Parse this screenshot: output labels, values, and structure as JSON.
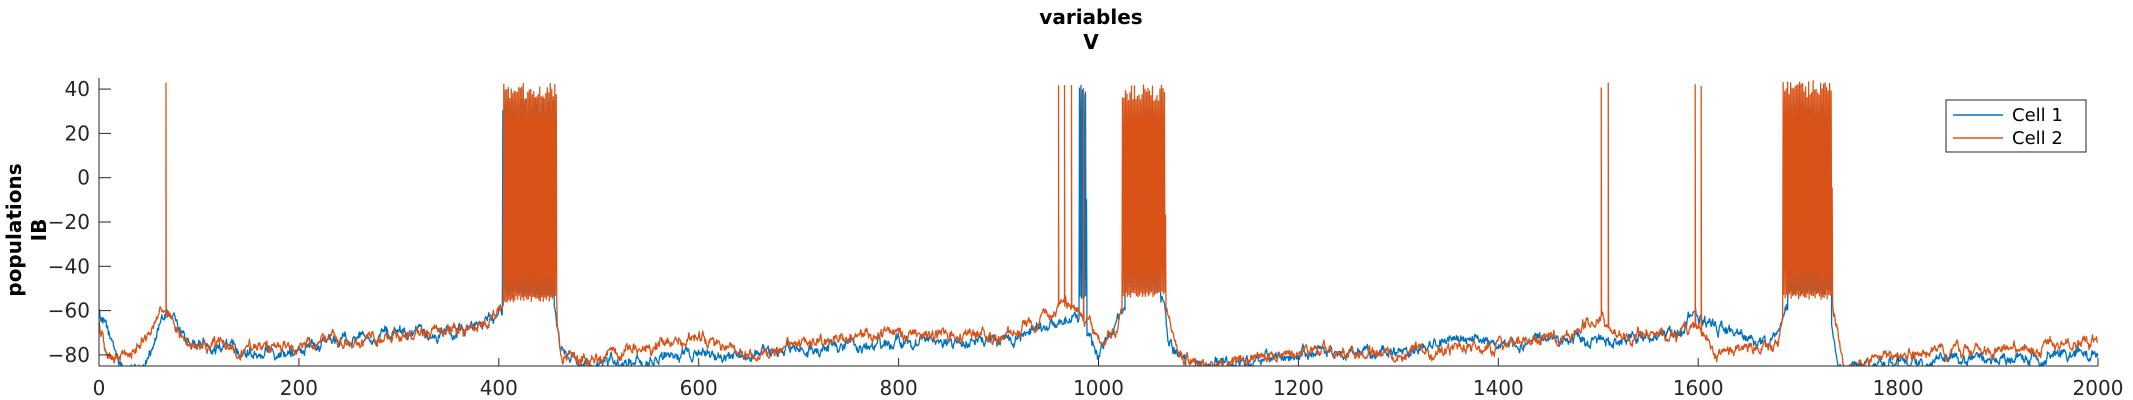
{
  "chart_data": {
    "type": "line",
    "title": [
      "variables",
      "V"
    ],
    "ylabel": [
      "populations",
      "IB"
    ],
    "xlabel": "",
    "xlim": [
      0,
      2000
    ],
    "ylim": [
      -85,
      45
    ],
    "xticks": [
      0,
      200,
      400,
      600,
      800,
      1000,
      1200,
      1400,
      1600,
      1800,
      2000
    ],
    "yticks": [
      40,
      20,
      0,
      -20,
      -40,
      -60,
      -80
    ],
    "grid": false,
    "legend_position": "top-right",
    "series": [
      {
        "name": "Cell 1",
        "color": "#0072BD",
        "baseline": [
          [
            0,
            -60
          ],
          [
            25,
            -88
          ],
          [
            45,
            -85
          ],
          [
            60,
            -68
          ],
          [
            68,
            -61
          ],
          [
            75,
            -64
          ],
          [
            90,
            -75
          ],
          [
            150,
            -78
          ],
          [
            200,
            -78
          ],
          [
            280,
            -70
          ],
          [
            330,
            -72
          ],
          [
            360,
            -68
          ],
          [
            390,
            -65
          ],
          [
            402,
            -61
          ],
          [
            415,
            -58
          ],
          [
            440,
            -55
          ],
          [
            455,
            -55
          ],
          [
            462,
            -78
          ],
          [
            480,
            -85
          ],
          [
            530,
            -83
          ],
          [
            600,
            -80
          ],
          [
            700,
            -78
          ],
          [
            800,
            -75
          ],
          [
            900,
            -73
          ],
          [
            950,
            -68
          ],
          [
            975,
            -62
          ],
          [
            990,
            -70
          ],
          [
            1000,
            -80
          ],
          [
            1015,
            -70
          ],
          [
            1025,
            -58
          ],
          [
            1065,
            -55
          ],
          [
            1070,
            -75
          ],
          [
            1090,
            -85
          ],
          [
            1200,
            -80
          ],
          [
            1300,
            -78
          ],
          [
            1370,
            -72
          ],
          [
            1400,
            -76
          ],
          [
            1450,
            -74
          ],
          [
            1500,
            -73
          ],
          [
            1580,
            -72
          ],
          [
            1595,
            -60
          ],
          [
            1610,
            -65
          ],
          [
            1660,
            -75
          ],
          [
            1680,
            -70
          ],
          [
            1688,
            -58
          ],
          [
            1730,
            -54
          ],
          [
            1740,
            -85
          ],
          [
            1800,
            -82
          ],
          [
            1900,
            -82
          ],
          [
            2000,
            -79
          ]
        ],
        "bursts": [
          {
            "range": [
              404,
              455
            ],
            "peak": 36,
            "trough": -54
          },
          {
            "range": [
              981,
              988
            ],
            "peak": 42,
            "trough": -55
          },
          {
            "range": [
              1027,
              1062
            ],
            "peak": 32,
            "trough": -52
          },
          {
            "range": [
              1690,
              1733
            ],
            "peak": 34,
            "trough": -53
          }
        ],
        "spikes": []
      },
      {
        "name": "Cell 2",
        "color": "#D95319",
        "baseline": [
          [
            0,
            -65
          ],
          [
            10,
            -83
          ],
          [
            30,
            -80
          ],
          [
            50,
            -70
          ],
          [
            64,
            -58
          ],
          [
            70,
            -60
          ],
          [
            90,
            -77
          ],
          [
            150,
            -77
          ],
          [
            200,
            -75
          ],
          [
            280,
            -72
          ],
          [
            330,
            -70
          ],
          [
            380,
            -68
          ],
          [
            402,
            -60
          ],
          [
            455,
            -55
          ],
          [
            462,
            -80
          ],
          [
            480,
            -83
          ],
          [
            530,
            -78
          ],
          [
            600,
            -72
          ],
          [
            650,
            -80
          ],
          [
            700,
            -75
          ],
          [
            800,
            -70
          ],
          [
            900,
            -72
          ],
          [
            950,
            -62
          ],
          [
            965,
            -55
          ],
          [
            990,
            -65
          ],
          [
            1005,
            -76
          ],
          [
            1018,
            -68
          ],
          [
            1026,
            -56
          ],
          [
            1068,
            -60
          ],
          [
            1080,
            -80
          ],
          [
            1120,
            -85
          ],
          [
            1200,
            -78
          ],
          [
            1300,
            -80
          ],
          [
            1400,
            -76
          ],
          [
            1470,
            -72
          ],
          [
            1500,
            -62
          ],
          [
            1520,
            -70
          ],
          [
            1570,
            -72
          ],
          [
            1600,
            -66
          ],
          [
            1620,
            -80
          ],
          [
            1680,
            -75
          ],
          [
            1688,
            -57
          ],
          [
            1733,
            -55
          ],
          [
            1745,
            -85
          ],
          [
            1800,
            -80
          ],
          [
            1900,
            -78
          ],
          [
            2000,
            -74
          ]
        ],
        "bursts": [
          {
            "range": [
              405,
              458
            ],
            "peak": 43,
            "trough": -56
          },
          {
            "range": [
              1024,
              1067
            ],
            "peak": 42,
            "trough": -54
          },
          {
            "range": [
              1685,
              1734
            ],
            "peak": 44,
            "trough": -55
          }
        ],
        "spikes": [
          67,
          960,
          966,
          973,
          985,
          1503,
          1510,
          1597,
          1603
        ]
      }
    ]
  }
}
